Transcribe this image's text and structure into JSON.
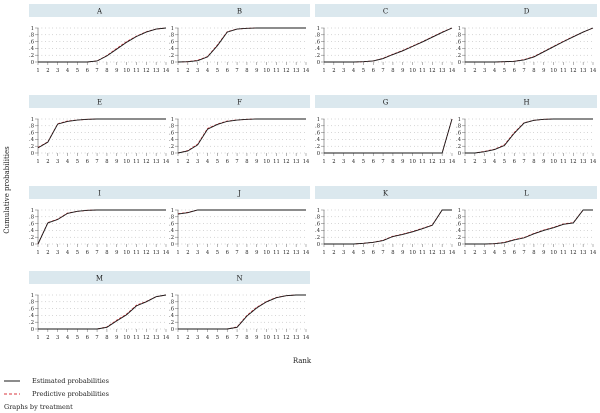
{
  "chart_data": {
    "type": "line",
    "ylabel": "Cumulative probabilities",
    "xlabel": "Rank",
    "note": "Graphs by treatment",
    "x": [
      1,
      2,
      3,
      4,
      5,
      6,
      7,
      8,
      9,
      10,
      11,
      12,
      13,
      14
    ],
    "x_tick_labels": [
      "1",
      "2",
      "3",
      "4",
      "5",
      "6",
      "7",
      "8",
      "9",
      "10",
      "11",
      "12",
      "13",
      "14"
    ],
    "y_tick_labels": [
      "0",
      ".2",
      ".4",
      ".6",
      ".8",
      "1"
    ],
    "ylim": [
      0,
      1
    ],
    "grid": "dotted",
    "legend": [
      {
        "name": "Estimated probabilities",
        "style": "solid",
        "color": "#1a1a1a"
      },
      {
        "name": "Predictive probabilities",
        "style": "dashed",
        "color": "#d8343c"
      }
    ],
    "panels": [
      {
        "title": "A",
        "estimated": [
          0,
          0,
          0,
          0,
          0,
          0,
          0.03,
          0.18,
          0.38,
          0.58,
          0.75,
          0.88,
          0.97,
          1
        ],
        "predictive": [
          0,
          0,
          0,
          0,
          0,
          0,
          0.03,
          0.19,
          0.4,
          0.6,
          0.76,
          0.89,
          0.97,
          1
        ]
      },
      {
        "title": "B",
        "estimated": [
          0,
          0.01,
          0.04,
          0.15,
          0.48,
          0.88,
          0.97,
          0.99,
          1,
          1,
          1,
          1,
          1,
          1
        ],
        "predictive": [
          0,
          0.01,
          0.05,
          0.16,
          0.5,
          0.89,
          0.97,
          0.99,
          1,
          1,
          1,
          1,
          1,
          1
        ]
      },
      {
        "title": "C",
        "estimated": [
          0,
          0,
          0,
          0,
          0.01,
          0.03,
          0.1,
          0.22,
          0.33,
          0.46,
          0.59,
          0.73,
          0.87,
          1
        ],
        "predictive": [
          0,
          0,
          0,
          0,
          0.01,
          0.03,
          0.11,
          0.23,
          0.34,
          0.47,
          0.6,
          0.74,
          0.88,
          1
        ]
      },
      {
        "title": "D",
        "estimated": [
          0,
          0,
          0,
          0,
          0.01,
          0.02,
          0.06,
          0.15,
          0.3,
          0.45,
          0.6,
          0.74,
          0.88,
          1
        ],
        "predictive": [
          0,
          0,
          0,
          0,
          0.01,
          0.02,
          0.07,
          0.16,
          0.31,
          0.46,
          0.61,
          0.75,
          0.88,
          1
        ]
      },
      {
        "title": "E",
        "estimated": [
          0.15,
          0.32,
          0.85,
          0.93,
          0.97,
          0.99,
          1,
          1,
          1,
          1,
          1,
          1,
          1,
          1
        ],
        "predictive": [
          0.16,
          0.33,
          0.86,
          0.94,
          0.97,
          0.99,
          1,
          1,
          1,
          1,
          1,
          1,
          1,
          1
        ]
      },
      {
        "title": "F",
        "estimated": [
          0,
          0.06,
          0.24,
          0.7,
          0.84,
          0.93,
          0.97,
          0.99,
          1,
          1,
          1,
          1,
          1,
          1
        ],
        "predictive": [
          0,
          0.07,
          0.26,
          0.72,
          0.85,
          0.94,
          0.97,
          0.99,
          1,
          1,
          1,
          1,
          1,
          1
        ]
      },
      {
        "title": "G",
        "estimated": [
          0,
          0,
          0,
          0,
          0,
          0,
          0,
          0,
          0,
          0,
          0,
          0,
          0,
          1
        ],
        "predictive": [
          0,
          0,
          0,
          0,
          0,
          0,
          0,
          0,
          0,
          0,
          0,
          0,
          0,
          1
        ]
      },
      {
        "title": "H",
        "estimated": [
          0,
          0,
          0.04,
          0.1,
          0.22,
          0.58,
          0.88,
          0.96,
          0.99,
          1,
          1,
          1,
          1,
          1
        ],
        "predictive": [
          0,
          0,
          0.05,
          0.11,
          0.24,
          0.6,
          0.89,
          0.96,
          0.99,
          1,
          1,
          1,
          1,
          1
        ]
      },
      {
        "title": "I",
        "estimated": [
          0,
          0.62,
          0.72,
          0.9,
          0.96,
          0.99,
          1,
          1,
          1,
          1,
          1,
          1,
          1,
          1
        ],
        "predictive": [
          0,
          0.63,
          0.73,
          0.91,
          0.96,
          0.99,
          1,
          1,
          1,
          1,
          1,
          1,
          1,
          1
        ]
      },
      {
        "title": "J",
        "estimated": [
          0.88,
          0.92,
          1,
          1,
          1,
          1,
          1,
          1,
          1,
          1,
          1,
          1,
          1,
          1
        ],
        "predictive": [
          0.89,
          0.93,
          1,
          1,
          1,
          1,
          1,
          1,
          1,
          1,
          1,
          1,
          1,
          1
        ]
      },
      {
        "title": "K",
        "estimated": [
          0,
          0,
          0,
          0,
          0.02,
          0.05,
          0.1,
          0.22,
          0.28,
          0.36,
          0.45,
          0.55,
          1,
          1
        ],
        "predictive": [
          0,
          0,
          0,
          0,
          0.02,
          0.05,
          0.11,
          0.23,
          0.29,
          0.37,
          0.46,
          0.56,
          1,
          1
        ]
      },
      {
        "title": "L",
        "estimated": [
          0,
          0,
          0,
          0.01,
          0.04,
          0.12,
          0.18,
          0.3,
          0.4,
          0.48,
          0.58,
          0.62,
          1,
          1
        ],
        "predictive": [
          0,
          0,
          0,
          0.01,
          0.05,
          0.13,
          0.19,
          0.31,
          0.41,
          0.49,
          0.59,
          0.63,
          1,
          1
        ]
      },
      {
        "title": "M",
        "estimated": [
          0,
          0,
          0,
          0,
          0,
          0,
          0,
          0.05,
          0.24,
          0.42,
          0.68,
          0.8,
          0.95,
          1
        ],
        "predictive": [
          0,
          0,
          0,
          0,
          0,
          0,
          0,
          0.06,
          0.26,
          0.44,
          0.7,
          0.81,
          0.95,
          1
        ]
      },
      {
        "title": "N",
        "estimated": [
          0,
          0,
          0,
          0,
          0,
          0,
          0.05,
          0.38,
          0.62,
          0.8,
          0.92,
          0.98,
          1,
          1
        ],
        "predictive": [
          0,
          0,
          0,
          0,
          0,
          0,
          0.06,
          0.4,
          0.64,
          0.81,
          0.93,
          0.98,
          1,
          1
        ]
      }
    ]
  }
}
